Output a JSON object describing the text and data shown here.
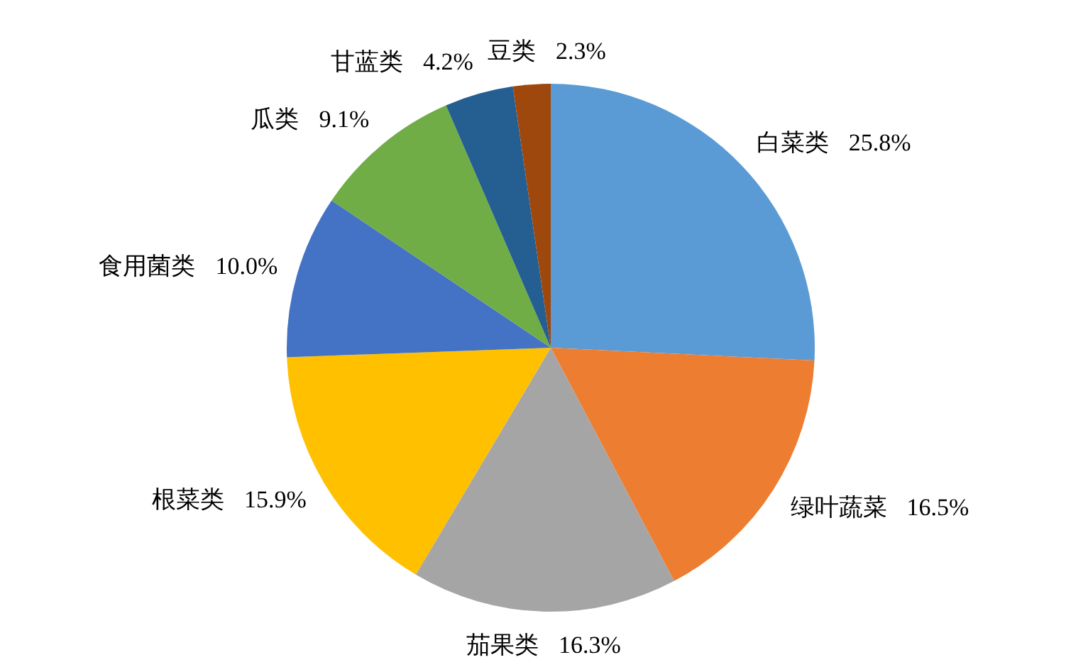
{
  "chart_data": {
    "type": "pie",
    "categories": [
      "白菜类",
      "绿叶蔬菜",
      "茄果类",
      "根菜类",
      "食用菌类",
      "瓜类",
      "甘蓝类",
      "豆类"
    ],
    "values": [
      25.8,
      16.5,
      16.3,
      15.9,
      10.0,
      9.1,
      4.2,
      2.3
    ],
    "value_labels": [
      "25.8%",
      "16.5%",
      "16.3%",
      "15.9%",
      "10.0%",
      "9.1%",
      "4.2%",
      "2.3%"
    ],
    "colors": [
      "#5b9bd5",
      "#ed7d31",
      "#a5a5a5",
      "#ffc000",
      "#4472c4",
      "#70ad47",
      "#255e91",
      "#9e480e"
    ]
  }
}
